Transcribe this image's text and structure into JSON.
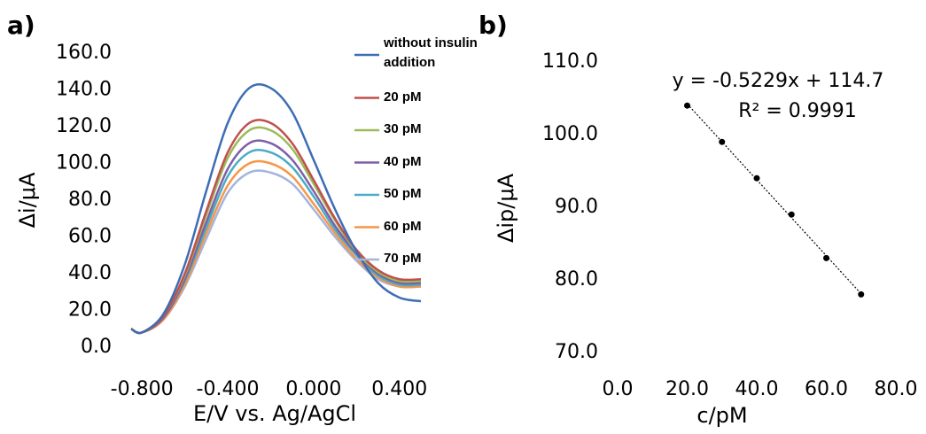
{
  "chart_data": [
    {
      "type": "line",
      "panel_label": "a)",
      "x_label": "E/V vs. Ag/AgCl",
      "y_label": "Δi/μA",
      "x": [
        -0.85,
        -0.8,
        -0.7,
        -0.6,
        -0.5,
        -0.4,
        -0.3,
        -0.2,
        -0.1,
        0.0,
        0.1,
        0.2,
        0.3,
        0.4,
        0.5
      ],
      "series": [
        {
          "name": "without insulin addition",
          "color": "#3d6db5",
          "values": [
            10,
            8,
            18,
            45,
            85,
            122,
            141,
            141,
            128,
            102,
            75,
            52,
            35,
            27,
            25
          ]
        },
        {
          "name": "20 pM",
          "color": "#c0504d",
          "values": [
            10,
            8,
            17,
            40,
            74,
            106,
            122,
            122,
            111,
            91,
            70,
            53,
            42,
            37,
            37
          ]
        },
        {
          "name": "30 pM",
          "color": "#9bbb59",
          "values": [
            10,
            8,
            17,
            39,
            72,
            103,
            118,
            118,
            108,
            89,
            69,
            52,
            41,
            36,
            36
          ]
        },
        {
          "name": "40 pM",
          "color": "#7f5fa6",
          "values": [
            10,
            8,
            16,
            37,
            68,
            97,
            111,
            111,
            102,
            85,
            66,
            51,
            40,
            35,
            35
          ]
        },
        {
          "name": "50 pM",
          "color": "#4bacc6",
          "values": [
            10,
            8,
            16,
            36,
            65,
            93,
            106,
            106,
            98,
            82,
            64,
            50,
            39,
            34,
            34
          ]
        },
        {
          "name": "60 pM",
          "color": "#f79646",
          "values": [
            10,
            8,
            15,
            34,
            62,
            88,
            100,
            100,
            93,
            78,
            62,
            48,
            38,
            33,
            33
          ]
        },
        {
          "name": "70 pM",
          "color": "#a5b4dc",
          "values": [
            10,
            8,
            15,
            33,
            59,
            84,
            95,
            95,
            89,
            75,
            60,
            47,
            37,
            33,
            33
          ]
        }
      ],
      "xlim": [
        -0.85,
        0.5
      ],
      "xticks": [
        {
          "value": -0.8,
          "label": "-0.800"
        },
        {
          "value": -0.4,
          "label": "-0.400"
        },
        {
          "value": 0,
          "label": "0.000"
        },
        {
          "value": 0.4,
          "label": "0.400"
        }
      ],
      "ylim": [
        0,
        160
      ],
      "yticks": [
        {
          "value": 0,
          "label": "0.0"
        },
        {
          "value": 20,
          "label": "20.0"
        },
        {
          "value": 40,
          "label": "40.0"
        },
        {
          "value": 60,
          "label": "60.0"
        },
        {
          "value": 80,
          "label": "80.0"
        },
        {
          "value": 100,
          "label": "100.0"
        },
        {
          "value": 120,
          "label": "120.0"
        },
        {
          "value": 140,
          "label": "140.0"
        },
        {
          "value": 160,
          "label": "160.0"
        }
      ],
      "legend": "upper right"
    },
    {
      "type": "scatter",
      "panel_label": "b)",
      "x_label": "c/pM",
      "y_label": "Δip/μA",
      "x": [
        20,
        30,
        40,
        50,
        60,
        70
      ],
      "values": [
        104,
        99,
        94,
        89,
        83,
        78
      ],
      "color": "#000000",
      "trendline": true,
      "annotations": [
        "y = -0.5229x + 114.7",
        "R² = 0.9991"
      ],
      "xlim": [
        0,
        80
      ],
      "xticks": [
        {
          "value": 0,
          "label": "0.0"
        },
        {
          "value": 20,
          "label": "20.0"
        },
        {
          "value": 40,
          "label": "40.0"
        },
        {
          "value": 60,
          "label": "60.0"
        },
        {
          "value": 80,
          "label": "80.0"
        }
      ],
      "ylim": [
        70,
        110
      ],
      "yticks": [
        {
          "value": 70,
          "label": "70.0"
        },
        {
          "value": 80,
          "label": "80.0"
        },
        {
          "value": 90,
          "label": "90.0"
        },
        {
          "value": 100,
          "label": "100.0"
        },
        {
          "value": 110,
          "label": "110.0"
        }
      ]
    }
  ]
}
